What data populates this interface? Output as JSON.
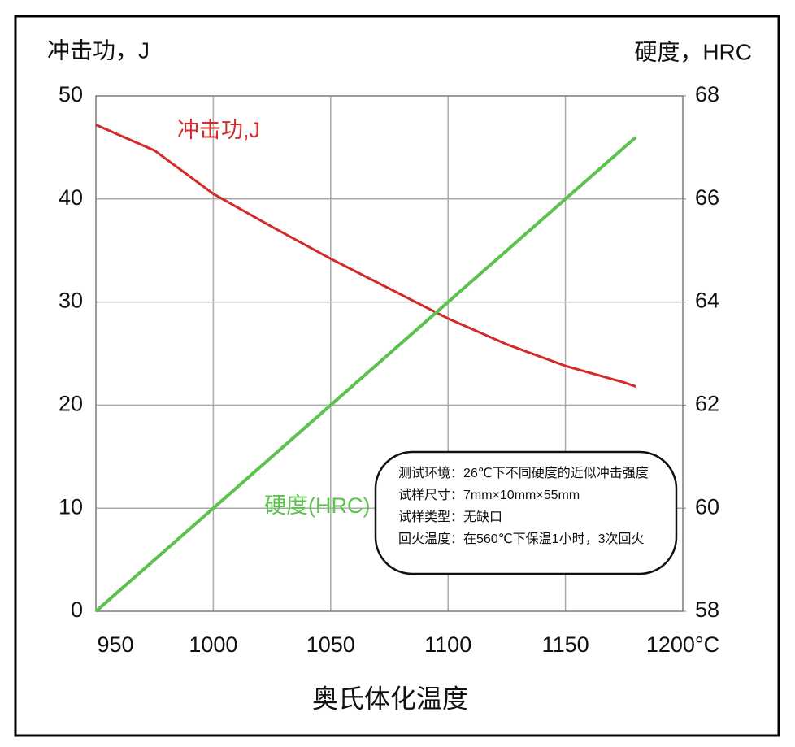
{
  "chart_data": {
    "type": "line",
    "y_label": "冲击功，J",
    "y2_label": "硬度，HRC",
    "x_label": "奥氏体化温度",
    "x": [
      950,
      975,
      1000,
      1025,
      1050,
      1075,
      1100,
      1125,
      1150,
      1175,
      1180
    ],
    "series": [
      {
        "name": "冲击功,J",
        "color": "#d42a2a",
        "values": [
          47.2,
          44.7,
          40.5,
          37.3,
          34.2,
          31.3,
          28.4,
          25.9,
          23.8,
          22.2,
          21.8
        ]
      },
      {
        "name": "硬度(HRC)",
        "color": "#5cc24e",
        "axis": "y2",
        "values": [
          58,
          59,
          60,
          61,
          62,
          63,
          64,
          65,
          66,
          67,
          67.2
        ]
      }
    ],
    "xlim": [
      950,
      1200
    ],
    "xticks": [
      950,
      1000,
      1050,
      1100,
      1150,
      {
        "value": 1200,
        "label": "1200°C"
      }
    ],
    "ylim": [
      0,
      50
    ],
    "yticks": [
      0,
      10,
      20,
      30,
      40,
      50
    ],
    "y2lim": [
      58,
      68
    ],
    "y2ticks": [
      58,
      60,
      62,
      64,
      66,
      68
    ],
    "grid": true,
    "note": [
      "测试环境：26℃下不同硬度的近似冲击强度",
      "试样尺寸：7mm×10mm×55mm",
      "试样类型：无缺口",
      "回火温度：在560℃下保温1小时，3次回火"
    ]
  }
}
